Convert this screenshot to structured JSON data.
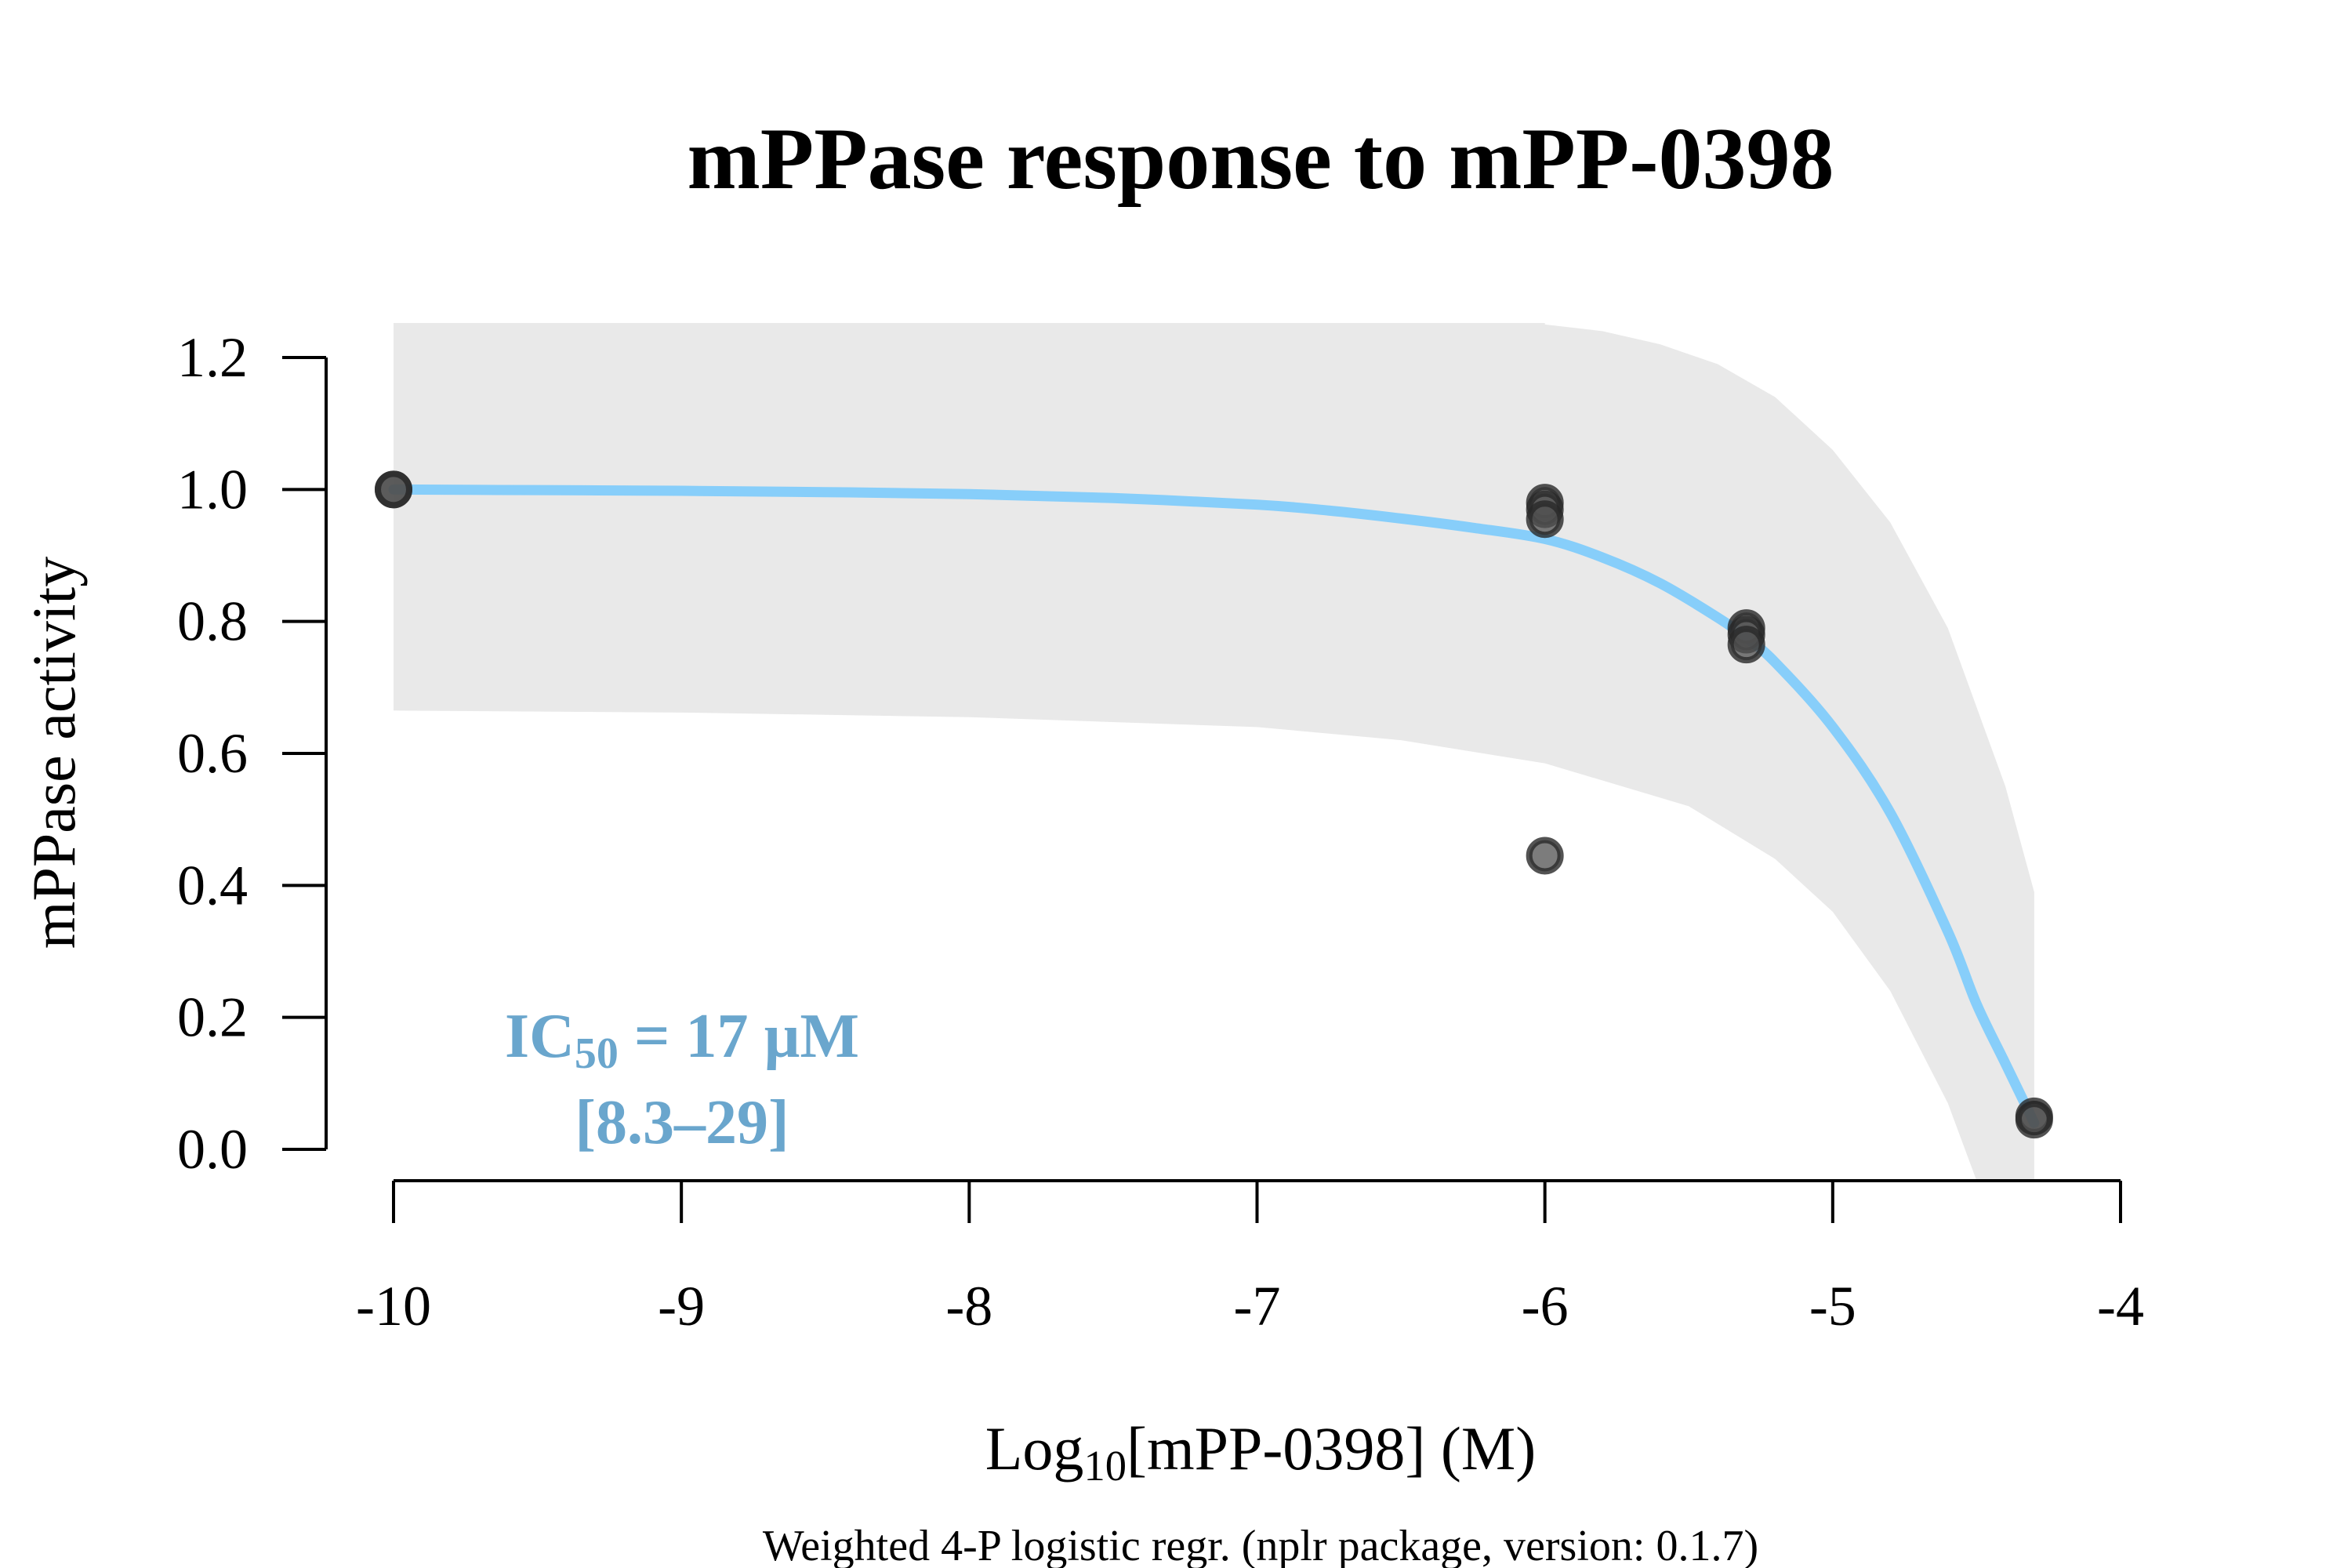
{
  "chart_data": {
    "type": "scatter",
    "title": "mPPase response to mPP-0398",
    "xlabel": {
      "prefix": "Log",
      "subscript": "10",
      "suffix": "[mPP-0398] (M)"
    },
    "ylabel": "mPPase activity",
    "caption": "Weighted 4-P logistic regr. (nplr package, version: 0.1.7)",
    "xlim": [
      -10,
      -4
    ],
    "ylim": [
      0,
      1.2
    ],
    "x_ticks": [
      -10,
      -9,
      -8,
      -7,
      -6,
      -5,
      -4
    ],
    "x_tick_labels": [
      "-10",
      "-9",
      "-8",
      "-7",
      "-6",
      "-5",
      "-4"
    ],
    "y_ticks": [
      0,
      0.2,
      0.4,
      0.6,
      0.8,
      1.0,
      1.2
    ],
    "y_tick_labels": [
      "0.0",
      "0.2",
      "0.4",
      "0.6",
      "0.8",
      "1.0",
      "1.2"
    ],
    "points": [
      {
        "x": -10,
        "y": 1.0
      },
      {
        "x": -10,
        "y": 1.0
      },
      {
        "x": -6,
        "y": 0.98
      },
      {
        "x": -6,
        "y": 0.97
      },
      {
        "x": -6,
        "y": 0.955
      },
      {
        "x": -6,
        "y": 0.445
      },
      {
        "x": -5.3,
        "y": 0.79
      },
      {
        "x": -5.3,
        "y": 0.78
      },
      {
        "x": -5.3,
        "y": 0.765
      },
      {
        "x": -4.3,
        "y": 0.05
      },
      {
        "x": -4.3,
        "y": 0.045
      }
    ],
    "fit_curve": {
      "color": "#87cefa",
      "x": [
        -10,
        -9.5,
        -9,
        -8.5,
        -8,
        -7.5,
        -7,
        -6.75,
        -6.5,
        -6.25,
        -6,
        -5.8,
        -5.6,
        -5.4,
        -5.3,
        -5.2,
        -5.0,
        -4.8,
        -4.6,
        -4.5,
        -4.4,
        -4.3
      ],
      "y": [
        1.0,
        0.999,
        0.998,
        0.996,
        0.993,
        0.987,
        0.977,
        0.968,
        0.956,
        0.942,
        0.925,
        0.897,
        0.858,
        0.806,
        0.775,
        0.738,
        0.64,
        0.51,
        0.33,
        0.22,
        0.13,
        0.04
      ]
    },
    "confidence_band": {
      "color": "#e9e9e9",
      "x": [
        -10,
        -9,
        -8,
        -7,
        -6.5,
        -6,
        -5.5,
        -5.2,
        -5.0,
        -4.8,
        -4.6,
        -4.5,
        -4.4,
        -4.3
      ],
      "upper": [
        1.25,
        1.25,
        1.25,
        1.25,
        1.25,
        1.25,
        1.25,
        1.25,
        1.25,
        1.25,
        1.25,
        1.25,
        1.25,
        1.25
      ],
      "lower": [
        0.665,
        0.662,
        0.655,
        0.64,
        0.62,
        0.585,
        0.52,
        0.44,
        0.36,
        0.24,
        0.07,
        -0.05,
        -0.05,
        -0.05
      ],
      "upper_curve_x": [
        -6.0,
        -5.8,
        -5.6,
        -5.4,
        -5.2,
        -5.0,
        -4.8,
        -4.6,
        -4.4,
        -4.3
      ],
      "upper_curve_y": [
        1.25,
        1.24,
        1.22,
        1.19,
        1.14,
        1.06,
        0.95,
        0.79,
        0.55,
        0.39
      ]
    },
    "annotation": {
      "line1_prefix": "IC",
      "line1_sub": "50",
      "line1_suffix": " = 17 µM",
      "line2": "[8.3–29]",
      "color": "#6aa6cd"
    }
  }
}
